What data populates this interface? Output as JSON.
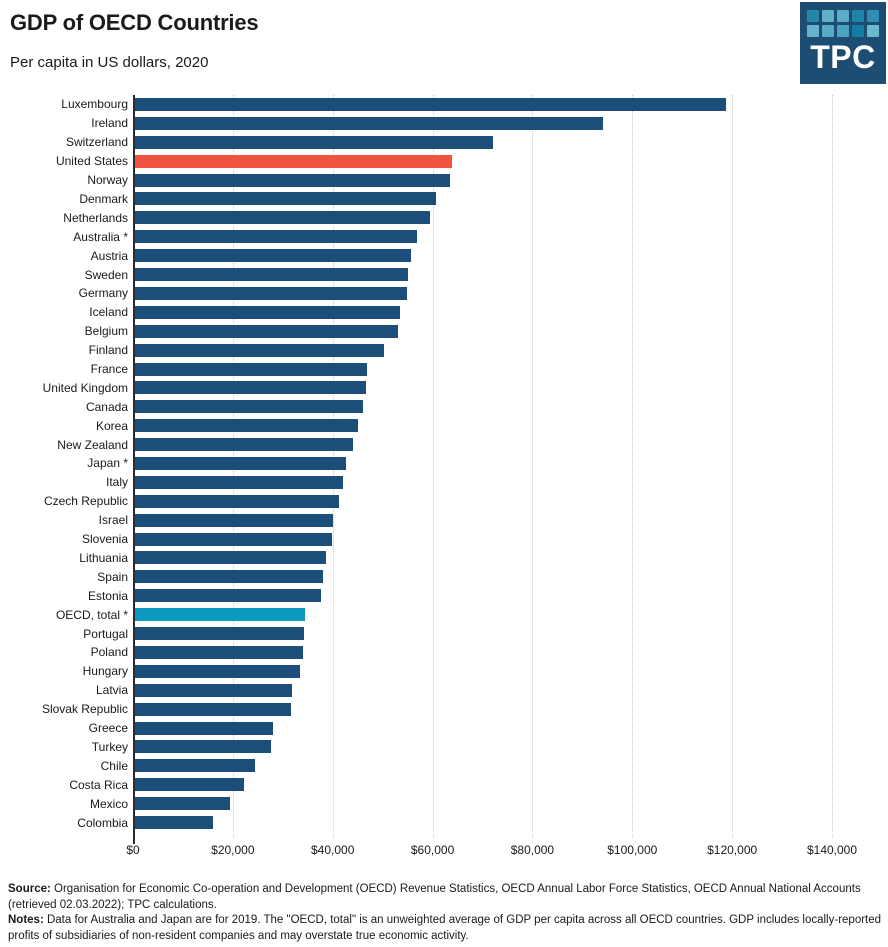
{
  "header": {
    "title": "GDP of OECD Countries",
    "subtitle": "Per capita in US dollars, 2020"
  },
  "logo": {
    "text": "TPC",
    "background": "#1d4d73",
    "grid_colors": [
      [
        "#2488ab",
        "#5eb0c9",
        "#5aadc7",
        "#1e83a8",
        "#2e8fb1"
      ],
      [
        "#66b4cb",
        "#58abc5",
        "#4aa3c0",
        "#137ba4",
        "#6fb9ce"
      ]
    ]
  },
  "colors": {
    "bar_default": "#1b4e79",
    "bar_united_states": "#f0533f",
    "bar_oecd_total": "#0b99c0",
    "gridline": "#c9c9c9",
    "axis_line": "#2b2b2b",
    "text": "#1a1a1a"
  },
  "chart_data": {
    "type": "bar",
    "orientation": "horizontal",
    "title": "GDP of OECD Countries",
    "subtitle": "Per capita in US dollars, 2020",
    "xlabel": "",
    "ylabel": "",
    "xlim": [
      0,
      140000
    ],
    "grid": "vertical-dotted",
    "legend": "none",
    "x_ticks": [
      "$0",
      "$20,000",
      "$40,000",
      "$60,000",
      "$80,000",
      "$100,000",
      "$120,000",
      "$140,000"
    ],
    "x_tick_values": [
      0,
      20000,
      40000,
      60000,
      80000,
      100000,
      120000,
      140000
    ],
    "categories": [
      "Luxembourg",
      "Ireland",
      "Switzerland",
      "United States",
      "Norway",
      "Denmark",
      "Netherlands",
      "Australia *",
      "Austria",
      "Sweden",
      "Germany",
      "Iceland",
      "Belgium",
      "Finland",
      "France",
      "United Kingdom",
      "Canada",
      "Korea",
      "New Zealand",
      "Japan *",
      "Italy",
      "Czech Republic",
      "Israel",
      "Slovenia",
      "Lithuania",
      "Spain",
      "Estonia",
      "OECD, total *",
      "Portugal",
      "Poland",
      "Hungary",
      "Latvia",
      "Slovak Republic",
      "Greece",
      "Turkey",
      "Chile",
      "Costa Rica",
      "Mexico",
      "Colombia"
    ],
    "values": [
      118300,
      93700,
      71700,
      63500,
      63000,
      60200,
      59000,
      56400,
      55200,
      54600,
      54400,
      53100,
      52700,
      49900,
      46400,
      46200,
      45700,
      44600,
      43700,
      42200,
      41700,
      40800,
      39700,
      39400,
      38300,
      37600,
      37300,
      34100,
      33900,
      33600,
      33000,
      31500,
      31300,
      27700,
      27300,
      24100,
      21800,
      19100,
      15600
    ],
    "highlighted_bars": [
      {
        "index": 3,
        "label": "United States",
        "color": "#f0533f"
      },
      {
        "index": 27,
        "label": "OECD, total *",
        "color": "#0b99c0"
      }
    ]
  },
  "footer": {
    "source_label": "Source:",
    "source_text": "Organisation for Economic Co-operation and Development (OECD) Revenue Statistics, OECD Annual Labor Force Statistics, OECD Annual National Accounts (retrieved 02.03.2022); TPC calculations.",
    "notes_label": "Notes:",
    "notes_text": "Data for Australia and Japan are for 2019. The \"OECD, total\" is an unweighted average of GDP per capita across all OECD countries. GDP includes locally-reported profits of subsidiaries of non-resident companies and may overstate true economic activity."
  }
}
